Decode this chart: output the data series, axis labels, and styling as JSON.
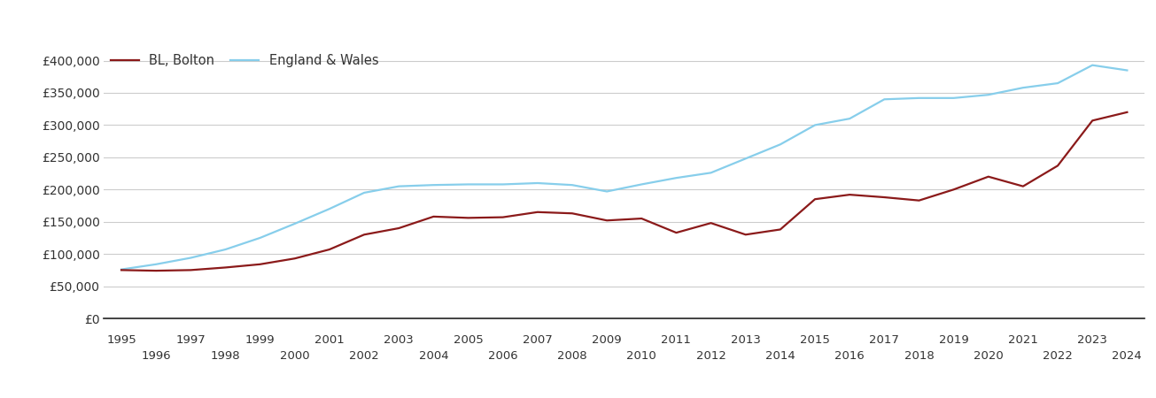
{
  "legend": [
    "BL, Bolton",
    "England & Wales"
  ],
  "bolton_color": "#8B1A1A",
  "ew_color": "#87CEEB",
  "background_color": "#ffffff",
  "grid_color": "#cccccc",
  "years": [
    1995,
    1996,
    1997,
    1998,
    1999,
    2000,
    2001,
    2002,
    2003,
    2004,
    2005,
    2006,
    2007,
    2008,
    2009,
    2010,
    2011,
    2012,
    2013,
    2014,
    2015,
    2016,
    2017,
    2018,
    2019,
    2020,
    2021,
    2022,
    2023,
    2024
  ],
  "bolton": [
    75000,
    74000,
    75000,
    79000,
    84000,
    93000,
    107000,
    130000,
    140000,
    158000,
    156000,
    157000,
    165000,
    163000,
    152000,
    155000,
    133000,
    148000,
    130000,
    138000,
    185000,
    192000,
    188000,
    183000,
    200000,
    220000,
    205000,
    237000,
    307000,
    320000
  ],
  "england_wales": [
    76000,
    84000,
    94000,
    107000,
    125000,
    147000,
    170000,
    195000,
    205000,
    207000,
    208000,
    208000,
    210000,
    207000,
    197000,
    208000,
    218000,
    226000,
    248000,
    270000,
    300000,
    310000,
    340000,
    342000,
    342000,
    347000,
    358000,
    365000,
    393000,
    385000
  ],
  "ylim": [
    0,
    420000
  ],
  "yticks": [
    0,
    50000,
    100000,
    150000,
    200000,
    250000,
    300000,
    350000,
    400000
  ],
  "ytick_labels": [
    "£0",
    "£50,000",
    "£100,000",
    "£150,000",
    "£200,000",
    "£250,000",
    "£300,000",
    "£350,000",
    "£400,000"
  ],
  "xticks_odd": [
    1995,
    1997,
    1999,
    2001,
    2003,
    2005,
    2007,
    2009,
    2011,
    2013,
    2015,
    2017,
    2019,
    2021,
    2023
  ],
  "xticks_even": [
    1996,
    1998,
    2000,
    2002,
    2004,
    2006,
    2008,
    2010,
    2012,
    2014,
    2016,
    2018,
    2020,
    2022,
    2024
  ],
  "xlim": [
    1994.5,
    2024.5
  ],
  "line_width": 1.6
}
